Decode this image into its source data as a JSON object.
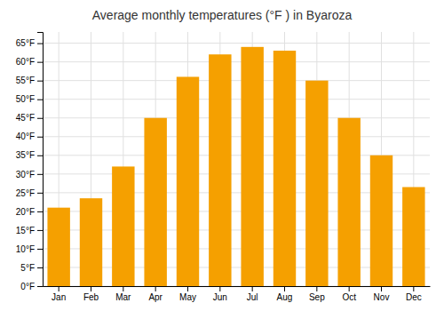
{
  "chart_data": {
    "type": "bar",
    "title": "Average monthly temperatures (°F ) in Byaroza",
    "categories": [
      "Jan",
      "Feb",
      "Mar",
      "Apr",
      "May",
      "Jun",
      "Jul",
      "Aug",
      "Sep",
      "Oct",
      "Nov",
      "Dec"
    ],
    "values": [
      21,
      23.5,
      32,
      45,
      56,
      62,
      64,
      63,
      55,
      45,
      35,
      26.5
    ],
    "color": "#F5A000",
    "ylim": [
      0,
      68
    ],
    "yticks": [
      {
        "value": 0,
        "label": "0°F"
      },
      {
        "value": 5,
        "label": "5°F"
      },
      {
        "value": 10,
        "label": "10°F"
      },
      {
        "value": 15,
        "label": "15°F"
      },
      {
        "value": 20,
        "label": "20°F"
      },
      {
        "value": 25,
        "label": "25°F"
      },
      {
        "value": 30,
        "label": "30°F"
      },
      {
        "value": 35,
        "label": "35°F"
      },
      {
        "value": 40,
        "label": "40°F"
      },
      {
        "value": 45,
        "label": "45°F"
      },
      {
        "value": 50,
        "label": "50°F"
      },
      {
        "value": 55,
        "label": "55°F"
      },
      {
        "value": 60,
        "label": "60°F"
      },
      {
        "value": 65,
        "label": "65°F"
      }
    ],
    "grid": true
  }
}
